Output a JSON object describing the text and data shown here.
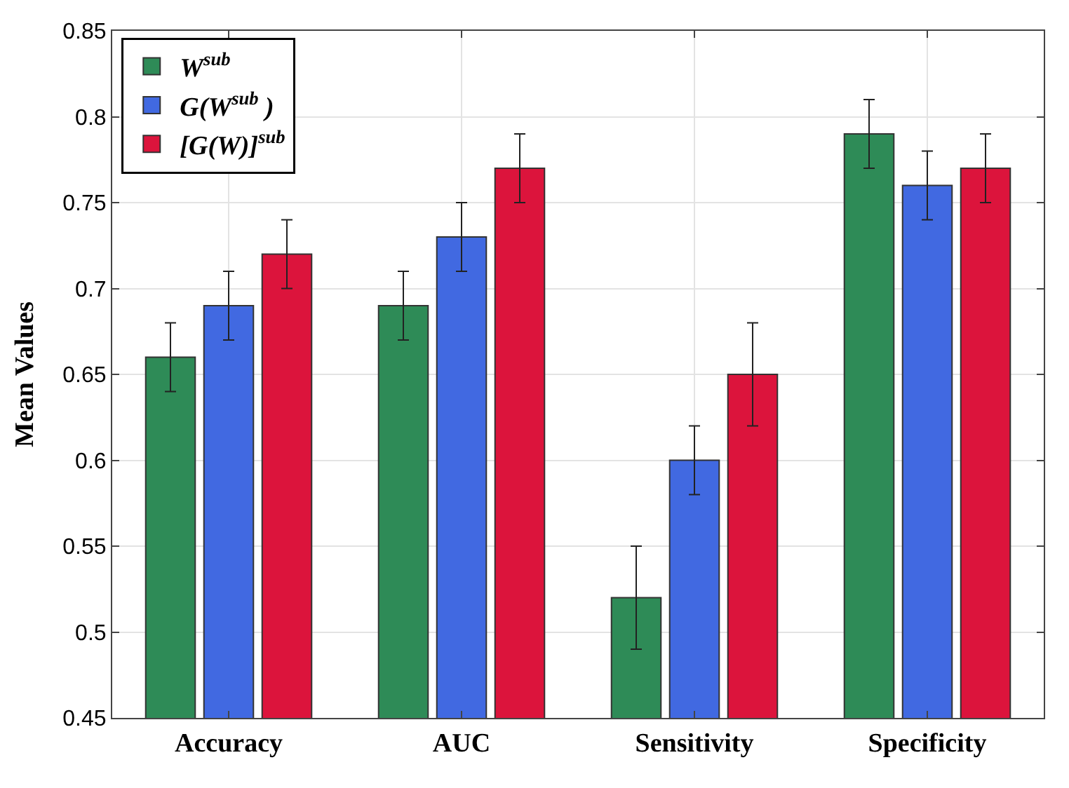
{
  "chart_data": {
    "type": "bar",
    "ylabel": "Mean Values",
    "categories": [
      "Accuracy",
      "AUC",
      "Sensitivity",
      "Specificity"
    ],
    "series": [
      {
        "name": "W$^{sub}$",
        "color": "#2e8b57",
        "values": [
          0.66,
          0.69,
          0.52,
          0.79
        ],
        "errors": [
          0.02,
          0.02,
          0.03,
          0.02
        ]
      },
      {
        "name": "G(W$^{sub}$ )",
        "color": "#4169e1",
        "values": [
          0.69,
          0.73,
          0.6,
          0.76
        ],
        "errors": [
          0.02,
          0.02,
          0.02,
          0.02
        ]
      },
      {
        "name": "[G(W)]$^{sub}$",
        "color": "#dc143c",
        "values": [
          0.72,
          0.77,
          0.65,
          0.77
        ],
        "errors": [
          0.02,
          0.02,
          0.03,
          0.02
        ]
      }
    ],
    "ylim": [
      0.45,
      0.85
    ],
    "yticks": [
      0.45,
      0.5,
      0.55,
      0.6,
      0.65,
      0.7,
      0.75,
      0.8,
      0.85
    ],
    "grid": true,
    "legend": "top left"
  }
}
